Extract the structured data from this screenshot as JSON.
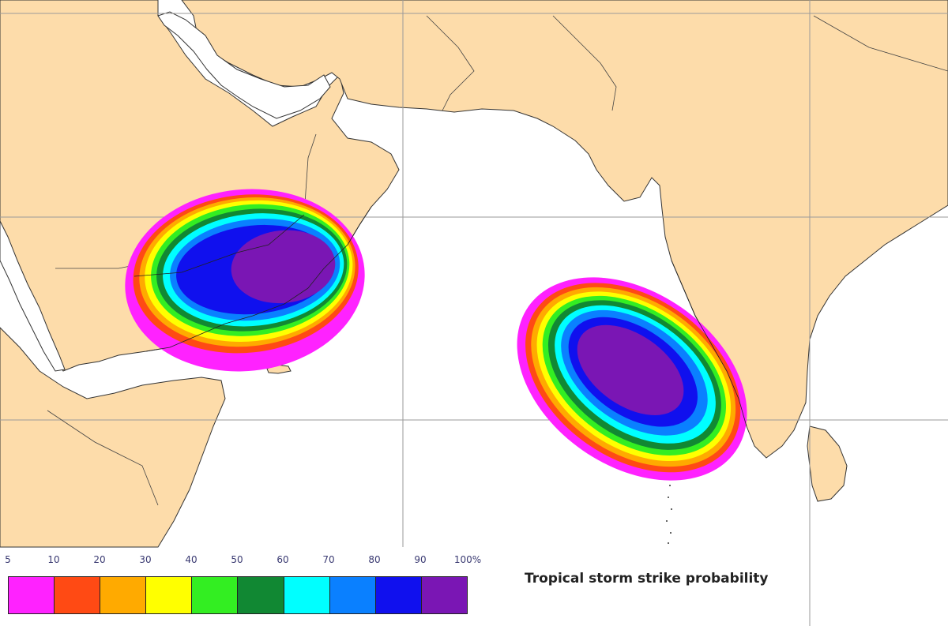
{
  "caption": "Tropical storm strike probability",
  "legend": {
    "labels": [
      "5",
      "10",
      "20",
      "30",
      "40",
      "50",
      "60",
      "70",
      "80",
      "90",
      "100%"
    ],
    "bands": [
      {
        "range": "5-10",
        "color": "#ff22ff"
      },
      {
        "range": "10-20",
        "color": "#ff4a14"
      },
      {
        "range": "20-30",
        "color": "#ffaa00"
      },
      {
        "range": "30-40",
        "color": "#ffff00"
      },
      {
        "range": "40-50",
        "color": "#33ee22"
      },
      {
        "range": "50-60",
        "color": "#118833"
      },
      {
        "range": "60-70",
        "color": "#00ffff"
      },
      {
        "range": "70-80",
        "color": "#0a80ff"
      },
      {
        "range": "80-90",
        "color": "#1010ee"
      },
      {
        "range": "90-100",
        "color": "#7a16b4"
      }
    ]
  },
  "map": {
    "land_color": "#fddcaa",
    "sea_color": "#ffffff",
    "border_color": "#333333",
    "grid_color": "#9a9a9a",
    "storms": [
      "storm-west-arabian-sea",
      "storm-east-arabian-sea"
    ]
  }
}
